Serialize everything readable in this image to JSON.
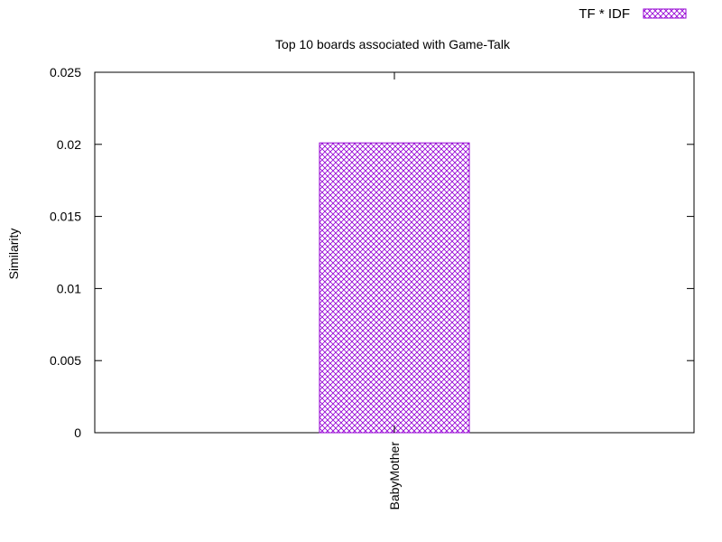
{
  "chart_data": {
    "type": "bar",
    "title": "Top 10 boards associated with Game-Talk",
    "xlabel": "",
    "ylabel": "Similarity",
    "categories": [
      "BabyMother"
    ],
    "series": [
      {
        "name": "TF * IDF",
        "values": [
          0.0201
        ],
        "color": "#9400d3",
        "fill": "crosshatch"
      }
    ],
    "ylim": [
      0,
      0.025
    ],
    "yticks": [
      "0",
      "0.005",
      "0.01",
      "0.015",
      "0.02",
      "0.025"
    ],
    "ytick_values": [
      0,
      0.005,
      0.01,
      0.015,
      0.02,
      0.025
    ],
    "grid": false,
    "legend_position": "top-right"
  }
}
